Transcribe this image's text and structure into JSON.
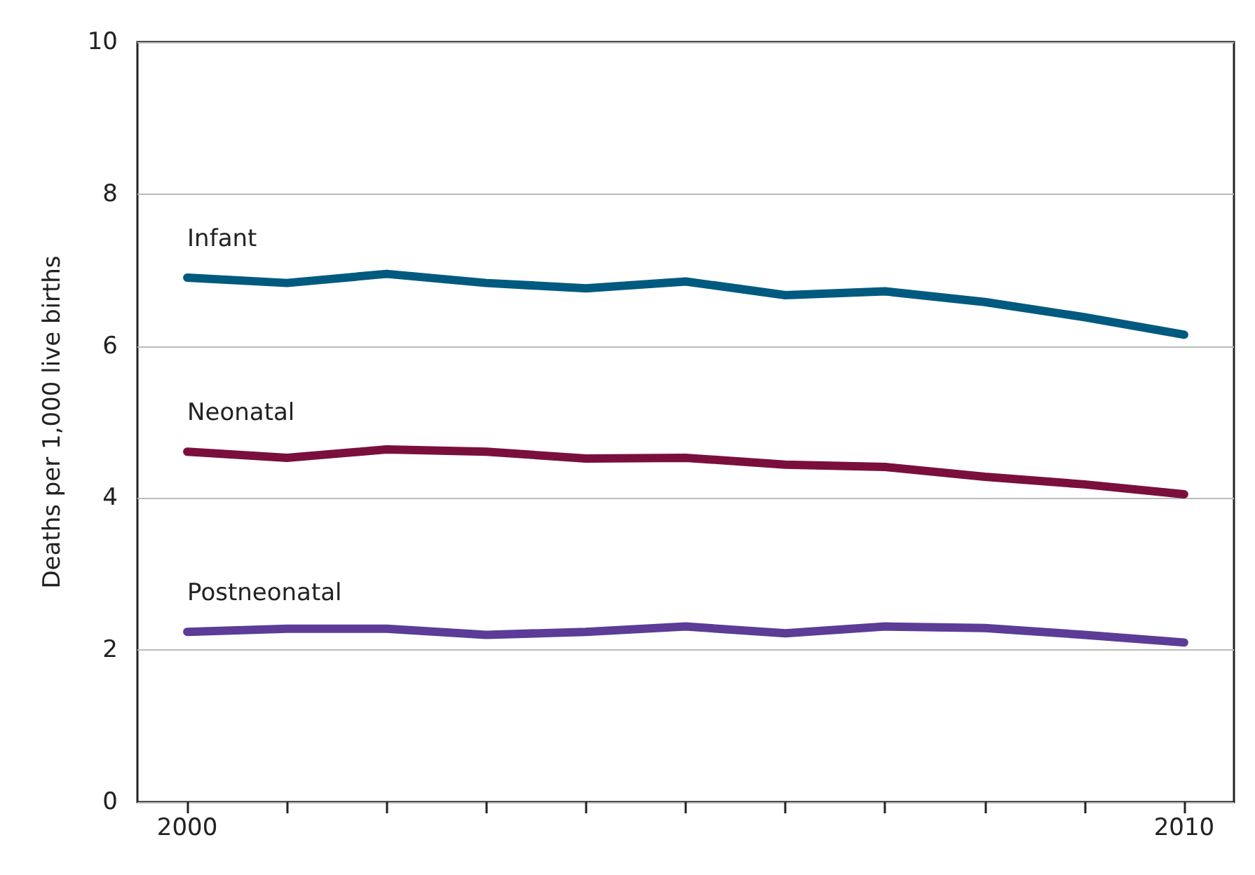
{
  "chart_data": {
    "type": "line",
    "ylabel": "Deaths per 1,000 live births",
    "x": [
      2000,
      2001,
      2002,
      2003,
      2004,
      2005,
      2006,
      2007,
      2008,
      2009,
      2010
    ],
    "series": [
      {
        "name": "Infant",
        "color": "#005a7f",
        "values": [
          6.9,
          6.83,
          6.95,
          6.83,
          6.76,
          6.85,
          6.67,
          6.72,
          6.58,
          6.38,
          6.15
        ]
      },
      {
        "name": "Neonatal",
        "color": "#7a0f3e",
        "values": [
          4.61,
          4.53,
          4.64,
          4.61,
          4.52,
          4.53,
          4.44,
          4.41,
          4.28,
          4.18,
          4.05
        ]
      },
      {
        "name": "Postneonatal",
        "color": "#5c3c97",
        "values": [
          2.24,
          2.28,
          2.28,
          2.2,
          2.24,
          2.31,
          2.22,
          2.31,
          2.29,
          2.2,
          2.1
        ]
      }
    ],
    "xlim": [
      1999.5,
      2010.5
    ],
    "xticks": [
      2000,
      {
        "value": 2001,
        "label": null
      },
      {
        "value": 2002,
        "label": null
      },
      {
        "value": 2003,
        "label": null
      },
      {
        "value": 2004,
        "label": null
      },
      {
        "value": 2005,
        "label": null
      },
      {
        "value": 2006,
        "label": null
      },
      {
        "value": 2007,
        "label": null
      },
      {
        "value": 2008,
        "label": null
      },
      {
        "value": 2009,
        "label": null
      },
      2010
    ],
    "ylim": [
      0,
      10
    ],
    "yticks": [
      0,
      2,
      4,
      6,
      8,
      10
    ],
    "grid": "y",
    "legend": false,
    "marker": "none",
    "line_style": "solid"
  }
}
